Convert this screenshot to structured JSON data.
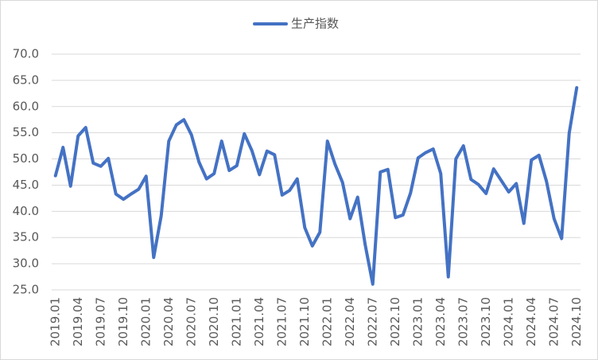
{
  "chart_data": {
    "type": "line",
    "categories": [
      "2019.01",
      null,
      null,
      "2019.04",
      null,
      null,
      "2019.07",
      null,
      null,
      "2019.10",
      null,
      null,
      "2020.01",
      null,
      null,
      "2020.04",
      null,
      null,
      "2020.07",
      null,
      null,
      "2020.10",
      null,
      null,
      "2021.01",
      null,
      null,
      "2021.04",
      null,
      null,
      "2021.07",
      null,
      null,
      "2021.10",
      null,
      null,
      "2022.01",
      null,
      null,
      "2022.04",
      null,
      null,
      "2022.07",
      null,
      null,
      "2022.10",
      null,
      null,
      "2023.01",
      null,
      null,
      "2023.04",
      null,
      null,
      "2023.07",
      null,
      null,
      "2023.10",
      null,
      null,
      "2024.01",
      null,
      null,
      "2024.04",
      null,
      null,
      "2024.07",
      null,
      null,
      "2024.10"
    ],
    "series": [
      {
        "name": "生产指数",
        "color": "#4472c4",
        "values": [
          46.8,
          52.2,
          44.8,
          54.4,
          56.0,
          49.2,
          48.6,
          50.1,
          43.3,
          42.3,
          43.3,
          44.2,
          46.7,
          31.2,
          39.2,
          53.4,
          56.5,
          57.5,
          54.6,
          49.4,
          46.2,
          47.2,
          53.4,
          47.8,
          48.7,
          54.8,
          51.6,
          47.0,
          51.5,
          50.8,
          43.1,
          44.0,
          46.2,
          36.9,
          33.4,
          36.0,
          53.4,
          49.0,
          45.5,
          38.6,
          42.7,
          33.6,
          26.1,
          47.5,
          48.0,
          38.8,
          39.3,
          43.5,
          50.2,
          51.2,
          51.9,
          47.2,
          27.5,
          50.0,
          52.5,
          46.1,
          45.1,
          43.4,
          48.1,
          45.9,
          43.7,
          45.3,
          37.7,
          49.8,
          50.7,
          45.7,
          38.6,
          34.8,
          54.9,
          63.6
        ]
      }
    ],
    "ylim": [
      25,
      70
    ],
    "yticks": [
      {
        "value": 25,
        "label": "25.0"
      },
      {
        "value": 30,
        "label": "30.0"
      },
      {
        "value": 35,
        "label": "35.0"
      },
      {
        "value": 40,
        "label": "40.0"
      },
      {
        "value": 45,
        "label": "45.0"
      },
      {
        "value": 50,
        "label": "50.0"
      },
      {
        "value": 55,
        "label": "55.0"
      },
      {
        "value": 60,
        "label": "60.0"
      },
      {
        "value": 65,
        "label": "65.0"
      },
      {
        "value": 70,
        "label": "70.0"
      }
    ],
    "grid": true,
    "legend": "top"
  }
}
